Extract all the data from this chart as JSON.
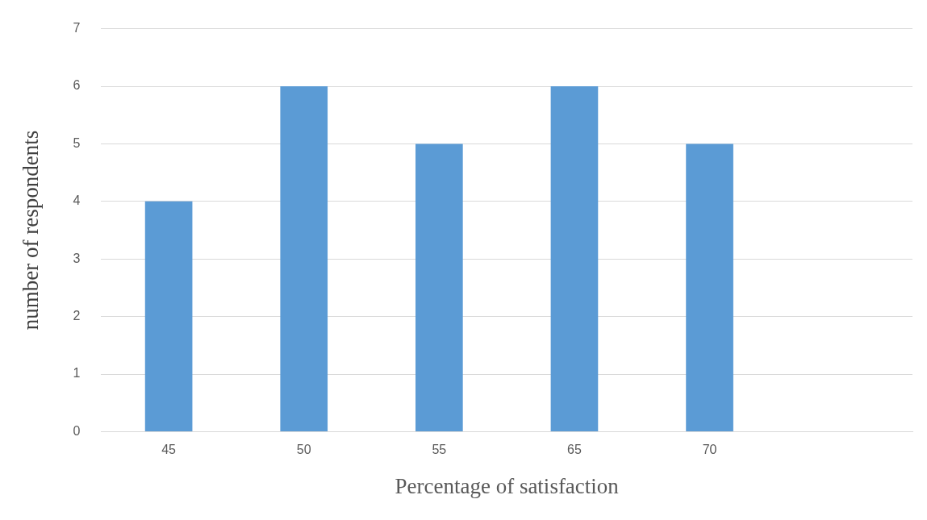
{
  "chart_data": {
    "type": "bar",
    "xlabel": "Percentage of satisfaction",
    "ylabel": "number of respondents",
    "categories": [
      "45",
      "50",
      "55",
      "65",
      "70",
      null
    ],
    "values": [
      4,
      6,
      5,
      6,
      5,
      null
    ],
    "color": "#5b9bd5",
    "ylim": [
      0,
      7
    ],
    "yticks": [
      0,
      1,
      2,
      3,
      4,
      5,
      6,
      7
    ],
    "grid": "y",
    "legend": false
  }
}
